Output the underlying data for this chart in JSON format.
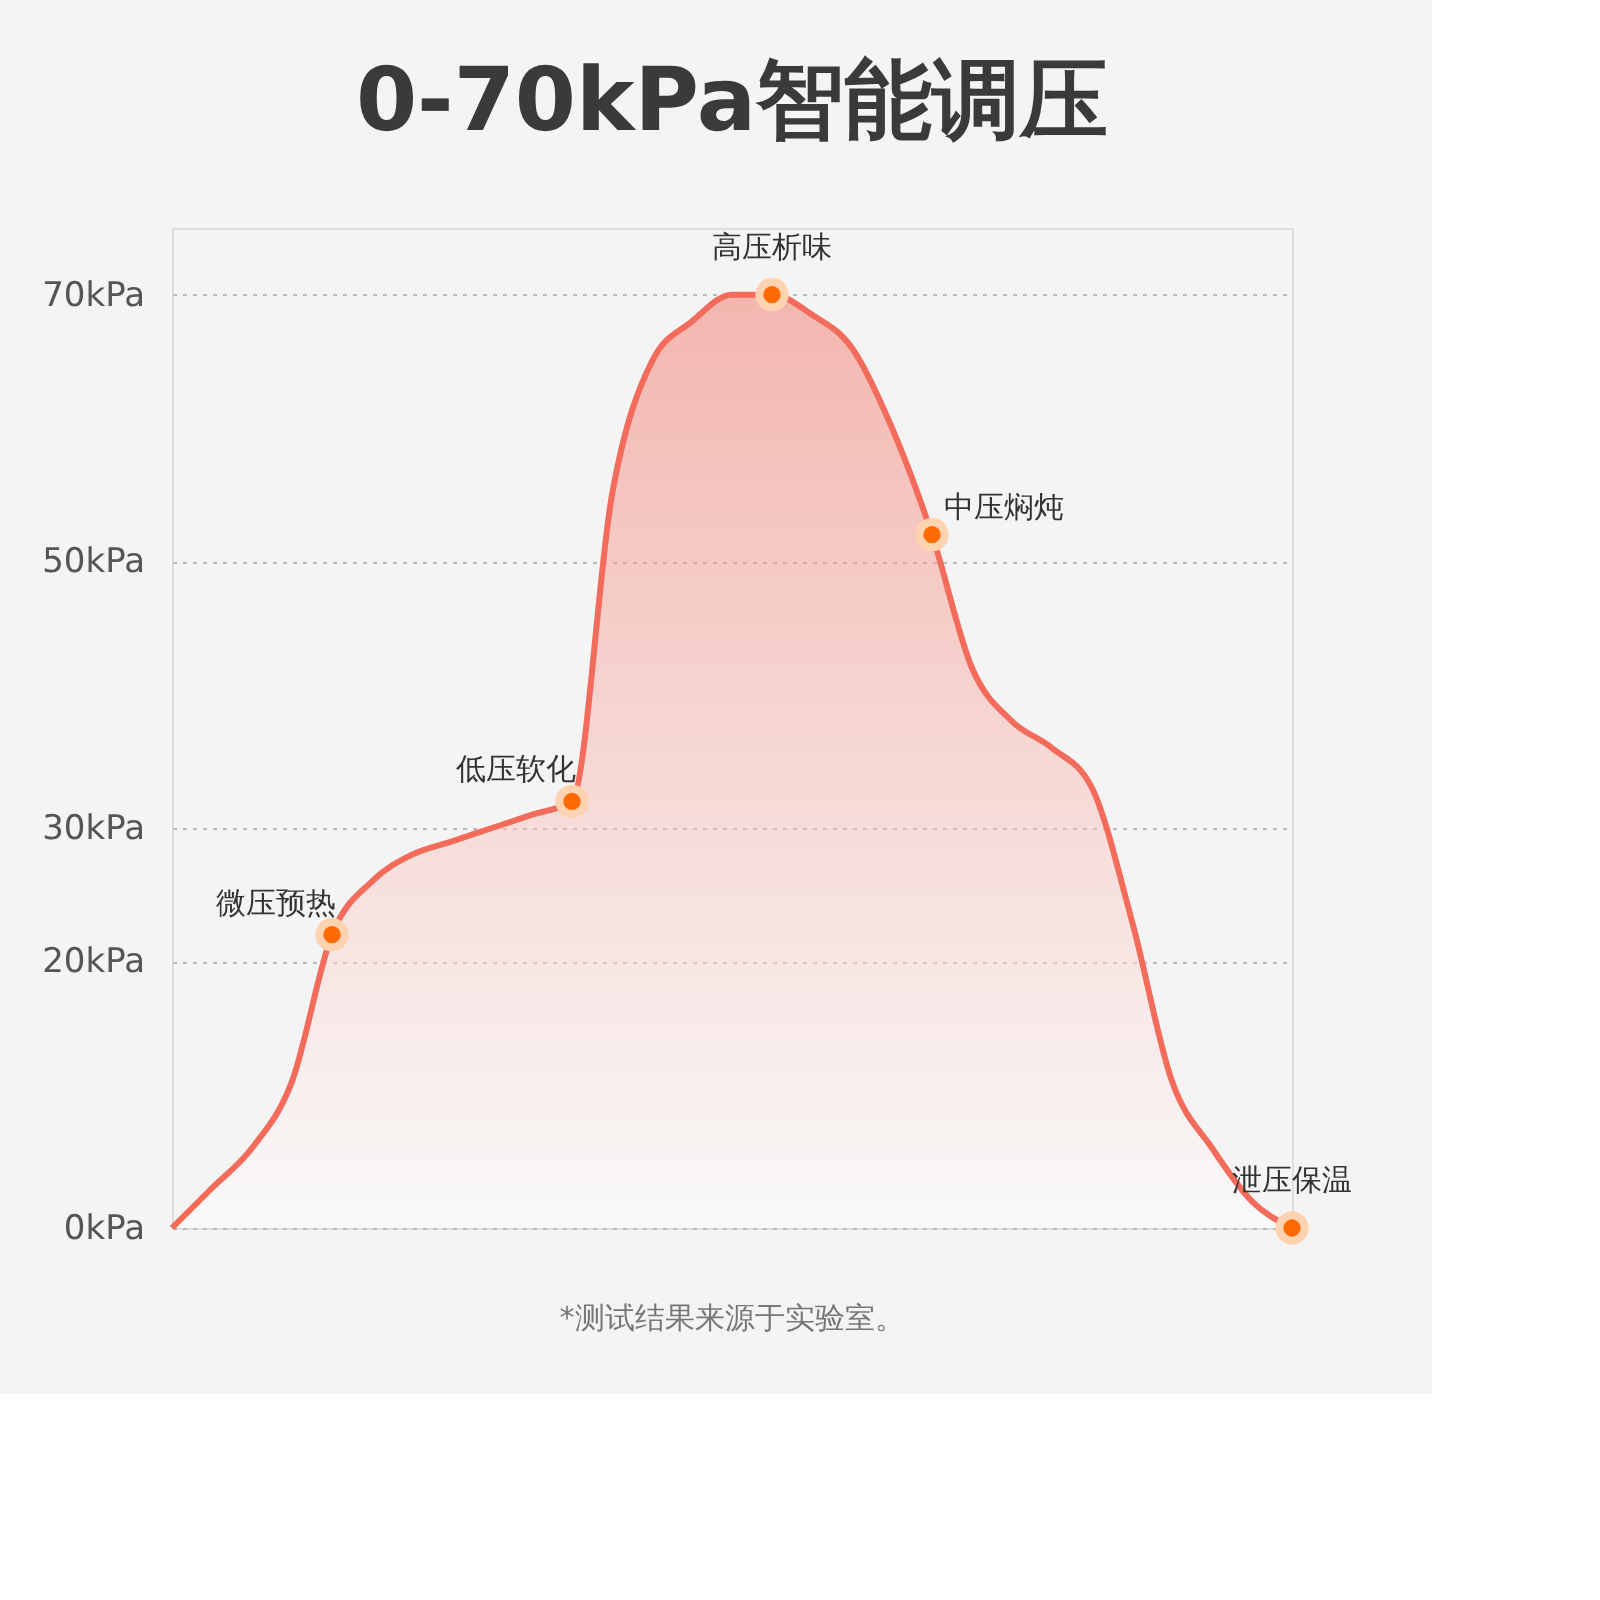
{
  "chart_data": {
    "type": "area",
    "title": "0-70kPa智能调压",
    "categories": [
      null,
      null,
      null,
      null,
      null,
      null,
      null,
      null,
      null,
      null,
      null,
      null,
      null,
      null,
      null,
      null,
      null,
      null,
      null,
      null,
      null,
      null,
      null,
      null,
      null,
      null,
      null,
      null,
      null
    ],
    "series": [
      {
        "color": "#f26b5b",
        "values": [
          0,
          3,
          6,
          11,
          22,
          26,
          28,
          29,
          30,
          31,
          32,
          55,
          65,
          68,
          70,
          70,
          68.5,
          66,
          60,
          52,
          42,
          38,
          36,
          33,
          23,
          11,
          6,
          2,
          0
        ]
      },
      {
        "type": "scatter",
        "marker": "circle",
        "color": "#ff6a00",
        "values": [
          null,
          null,
          null,
          null,
          22,
          null,
          null,
          null,
          null,
          null,
          32,
          null,
          null,
          null,
          null,
          70,
          null,
          null,
          null,
          52,
          null,
          null,
          null,
          null,
          null,
          null,
          null,
          null,
          0
        ]
      }
    ],
    "ylim": [
      0,
      75
    ],
    "yticks": [
      {
        "value": 0,
        "label": "0kPa"
      },
      {
        "value": 20,
        "label": "20kPa"
      },
      {
        "value": 30,
        "label": "30kPa"
      },
      {
        "value": 50,
        "label": "50kPa"
      },
      {
        "value": 70,
        "label": "70kPa"
      }
    ],
    "grid": "y",
    "tick_labels": "y",
    "annotations": [
      "微压预热",
      "低压软化",
      "高压析味",
      "中压焖炖",
      "泄压保温",
      "*测试结果来源于实验室。"
    ]
  }
}
